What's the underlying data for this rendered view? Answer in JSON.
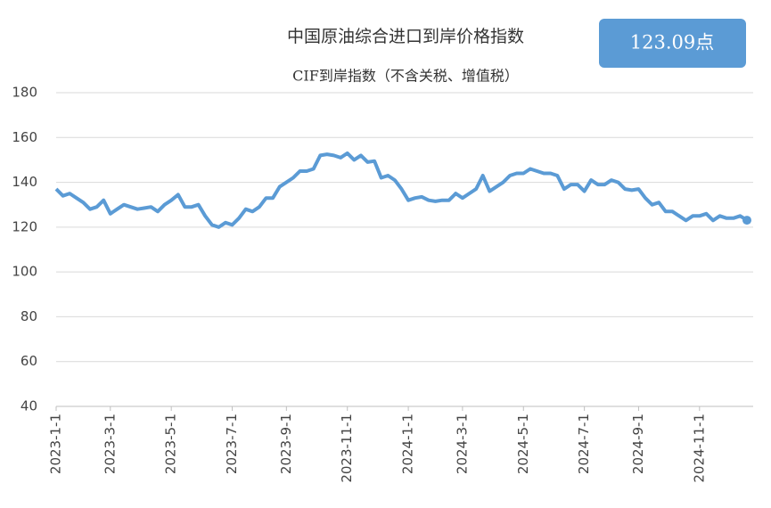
{
  "chart_data": {
    "type": "line",
    "title": "中国原油综合进口到岸价格指数",
    "subtitle": "CIF到岸指数（不含关税、增值税）",
    "badge": "123.09点",
    "categories": [
      "2023-1-1",
      null,
      null,
      null,
      null,
      null,
      null,
      null,
      "2023-3-1",
      null,
      null,
      null,
      null,
      null,
      null,
      null,
      null,
      "2023-5-1",
      null,
      null,
      null,
      null,
      null,
      null,
      null,
      null,
      "2023-7-1",
      null,
      null,
      null,
      null,
      null,
      null,
      null,
      "2023-9-1",
      null,
      null,
      null,
      null,
      null,
      null,
      null,
      null,
      "2023-11-1",
      null,
      null,
      null,
      null,
      null,
      null,
      null,
      null,
      "2024-1-1",
      null,
      null,
      null,
      null,
      null,
      null,
      null,
      "2024-3-1",
      null,
      null,
      null,
      null,
      null,
      null,
      null,
      null,
      "2024-5-1",
      null,
      null,
      null,
      null,
      null,
      null,
      null,
      null,
      "2024-7-1",
      null,
      null,
      null,
      null,
      null,
      null,
      null,
      "2024-9-1",
      null,
      null,
      null,
      null,
      null,
      null,
      null,
      null,
      "2024-11-1",
      null,
      null,
      null,
      null,
      null,
      null,
      null
    ],
    "values": [
      137,
      134,
      135,
      133,
      131,
      128,
      129,
      132,
      126,
      128,
      130,
      129,
      128,
      128.5,
      129,
      127,
      130,
      132,
      134.5,
      129,
      129,
      130,
      125,
      121,
      120,
      122,
      121,
      124,
      128,
      127,
      129,
      133,
      133,
      138,
      140,
      142,
      145,
      145,
      146,
      152,
      152.5,
      152,
      151,
      153,
      150,
      152,
      149,
      149.5,
      142,
      143,
      141,
      137,
      132,
      133,
      133.5,
      132,
      131.5,
      132,
      132,
      135,
      133,
      135,
      137,
      143,
      136,
      138,
      140,
      143,
      144,
      144,
      146,
      145,
      144,
      144,
      143,
      137,
      139,
      139,
      136,
      141,
      139,
      139,
      141,
      140,
      137,
      136.5,
      137,
      133,
      130,
      131,
      127,
      127,
      125,
      123,
      125,
      125,
      126,
      123,
      125,
      124,
      124,
      125,
      123.09
    ],
    "color": "#5b9bd5",
    "ylim": [
      40,
      180
    ],
    "yticks": [
      40,
      60,
      80,
      100,
      120,
      140,
      160,
      180
    ],
    "grid": true
  }
}
